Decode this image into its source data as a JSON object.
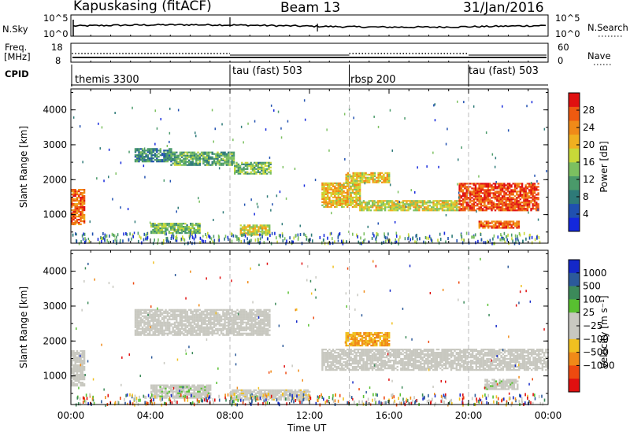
{
  "header": {
    "station": "Kapuskasing (fitACF)",
    "beam": "Beam 13",
    "date": "31/Jan/2016"
  },
  "top_panels": {
    "nsky_label": "N.Sky",
    "nsky_ticks": [
      "10^5",
      "10^0"
    ],
    "nsearch_label": "N.Search",
    "nsearch_ticks": [
      "10^5",
      "10^0"
    ],
    "freq_label": "Freq.",
    "freq_unit": "[MHz]",
    "freq_ticks": [
      "18",
      "8"
    ],
    "nave_label": "Nave",
    "nave_ticks": [
      "60",
      "0"
    ],
    "cpid_label": "CPID",
    "cpid_segments": [
      {
        "label": "themis 3300",
        "start_hour": 0,
        "end_hour": 8
      },
      {
        "label": "tau (fast) 503",
        "start_hour": 8,
        "end_hour": 14
      },
      {
        "label": "rbsp 200",
        "start_hour": 14,
        "end_hour": 20
      },
      {
        "label": "tau (fast) 503",
        "start_hour": 20,
        "end_hour": 24
      }
    ]
  },
  "axes": {
    "ylabel": "Slant Range [km]",
    "yticks": [
      "4000",
      "3000",
      "2000",
      "1000"
    ],
    "xlabel": "Time UT",
    "xticks": [
      "00:00",
      "04:00",
      "08:00",
      "12:00",
      "16:00",
      "20:00",
      "00:00"
    ]
  },
  "colorbars": {
    "power": {
      "label": "Power [dB]",
      "ticks": [
        "28",
        "24",
        "20",
        "16",
        "12",
        "8",
        "4"
      ],
      "colors": [
        "#1428dc",
        "#2050b0",
        "#2e7a78",
        "#4a9a6a",
        "#7cc060",
        "#c8d838",
        "#f0b020",
        "#f08a18",
        "#ee5a10",
        "#e01010"
      ]
    },
    "velocity": {
      "label": "Velocity [m s⁻¹]",
      "ticks": [
        "1000",
        "500",
        "100",
        "25",
        "−25",
        "−100",
        "−500",
        "−1000"
      ],
      "colors": [
        "#1428c8",
        "#2c5a9a",
        "#3c8a5a",
        "#58c030",
        "#c8c8c0",
        "#c8c8c0",
        "#f0c020",
        "#f08a18",
        "#ee4a10",
        "#e01010"
      ]
    }
  },
  "chart_data": [
    {
      "type": "heatmap",
      "title": "Power",
      "xlabel": "Time UT",
      "ylabel": "Slant Range [km]",
      "x_range_hours": [
        0,
        24
      ],
      "ylim": [
        180,
        4600
      ],
      "colorbar_label": "Power [dB]",
      "colorbar_range": [
        0,
        32
      ],
      "echo_regions": [
        {
          "t_start": 0.0,
          "t_end": 0.7,
          "r_min": 700,
          "r_max": 1700,
          "power_db": 26
        },
        {
          "t_start": 3.2,
          "t_end": 5.0,
          "r_min": 2500,
          "r_max": 2900,
          "power_db": 9
        },
        {
          "t_start": 5.0,
          "t_end": 8.2,
          "r_min": 2400,
          "r_max": 2800,
          "power_db": 12
        },
        {
          "t_start": 8.2,
          "t_end": 10.0,
          "r_min": 2150,
          "r_max": 2500,
          "power_db": 14
        },
        {
          "t_start": 4.0,
          "t_end": 6.5,
          "r_min": 450,
          "r_max": 750,
          "power_db": 14
        },
        {
          "t_start": 8.5,
          "t_end": 10.0,
          "r_min": 400,
          "r_max": 700,
          "power_db": 18
        },
        {
          "t_start": 12.6,
          "t_end": 14.5,
          "r_min": 1200,
          "r_max": 1900,
          "power_db": 20
        },
        {
          "t_start": 14.5,
          "t_end": 19.5,
          "r_min": 1100,
          "r_max": 1400,
          "power_db": 18
        },
        {
          "t_start": 13.8,
          "t_end": 16.0,
          "r_min": 1900,
          "r_max": 2200,
          "power_db": 20
        },
        {
          "t_start": 19.5,
          "t_end": 23.5,
          "r_min": 1100,
          "r_max": 1900,
          "power_db": 28
        },
        {
          "t_start": 20.5,
          "t_end": 22.5,
          "r_min": 600,
          "r_max": 800,
          "power_db": 27
        }
      ]
    },
    {
      "type": "heatmap",
      "title": "Velocity",
      "xlabel": "Time UT",
      "ylabel": "Slant Range [km]",
      "x_range_hours": [
        0,
        24
      ],
      "ylim": [
        180,
        4600
      ],
      "colorbar_label": "Velocity [m s⁻¹]",
      "colorbar_range": [
        -1000,
        1000
      ],
      "echo_regions": [
        {
          "t_start": 0.0,
          "t_end": 0.7,
          "r_min": 700,
          "r_max": 1700,
          "velocity": 100
        },
        {
          "t_start": 3.2,
          "t_end": 10.0,
          "r_min": 2150,
          "r_max": 2900,
          "velocity": 0
        },
        {
          "t_start": 4.0,
          "t_end": 7.0,
          "r_min": 350,
          "r_max": 750,
          "velocity": 150
        },
        {
          "t_start": 8.0,
          "t_end": 12.0,
          "r_min": 300,
          "r_max": 600,
          "velocity": -150
        },
        {
          "t_start": 12.6,
          "t_end": 24.0,
          "r_min": 1150,
          "r_max": 1750,
          "velocity": 0
        },
        {
          "t_start": 13.8,
          "t_end": 16.0,
          "r_min": 1850,
          "r_max": 2250,
          "velocity": -400
        },
        {
          "t_start": 20.8,
          "t_end": 22.5,
          "r_min": 600,
          "r_max": 900,
          "velocity": 150
        }
      ]
    }
  ]
}
